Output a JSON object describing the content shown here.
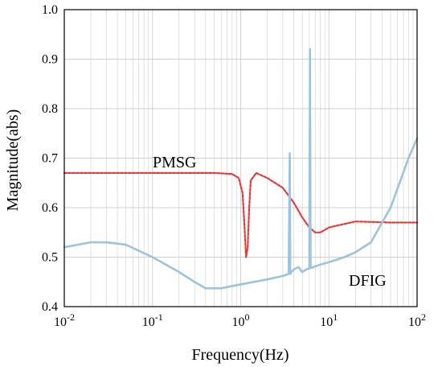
{
  "chart_data": {
    "type": "line",
    "title": "",
    "xlabel": "Frequency(Hz)",
    "ylabel": "Magnitude(abs)",
    "x_scale": "log",
    "xlim": [
      0.01,
      100
    ],
    "ylim": [
      0.4,
      1.0
    ],
    "grid": true,
    "x_ticks": [
      0.01,
      0.1,
      1,
      10,
      100
    ],
    "x_tick_labels": [
      {
        "base": "10",
        "exp": "-2"
      },
      {
        "base": "10",
        "exp": "-1"
      },
      {
        "base": "10",
        "exp": "0"
      },
      {
        "base": "10",
        "exp": "1"
      },
      {
        "base": "10",
        "exp": "2"
      }
    ],
    "y_ticks": [
      "0.4",
      "0.5",
      "0.6",
      "0.7",
      "0.8",
      "0.9",
      "1.0"
    ],
    "series": [
      {
        "name": "PMSG",
        "color": "#e8393a",
        "style": "dashed",
        "x": [
          0.01,
          0.1,
          0.5,
          0.8,
          0.95,
          1.05,
          1.1,
          1.15,
          1.2,
          1.25,
          1.3,
          1.5,
          2,
          3,
          4,
          5,
          6,
          7,
          8,
          10,
          20,
          50,
          100
        ],
        "y": [
          0.67,
          0.67,
          0.67,
          0.668,
          0.66,
          0.63,
          0.57,
          0.5,
          0.52,
          0.6,
          0.655,
          0.67,
          0.66,
          0.64,
          0.61,
          0.58,
          0.56,
          0.55,
          0.55,
          0.56,
          0.572,
          0.57,
          0.57
        ]
      },
      {
        "name": "DFIG",
        "color": "#9ec3dc",
        "style": "solid",
        "x": [
          0.01,
          0.02,
          0.03,
          0.05,
          0.1,
          0.2,
          0.3,
          0.4,
          0.6,
          1,
          2,
          3,
          3.5,
          3.6,
          3.65,
          3.75,
          4,
          4.5,
          5,
          5.5,
          6,
          6.1,
          6.2,
          6.3,
          6.5,
          8,
          10,
          15,
          20,
          30,
          50,
          80,
          100
        ],
        "y": [
          0.52,
          0.53,
          0.53,
          0.525,
          0.5,
          0.47,
          0.45,
          0.437,
          0.437,
          0.445,
          0.455,
          0.462,
          0.466,
          0.71,
          0.466,
          0.47,
          0.475,
          0.48,
          0.47,
          0.475,
          0.477,
          0.92,
          0.478,
          0.478,
          0.479,
          0.485,
          0.49,
          0.5,
          0.51,
          0.53,
          0.6,
          0.7,
          0.74
        ]
      }
    ]
  }
}
